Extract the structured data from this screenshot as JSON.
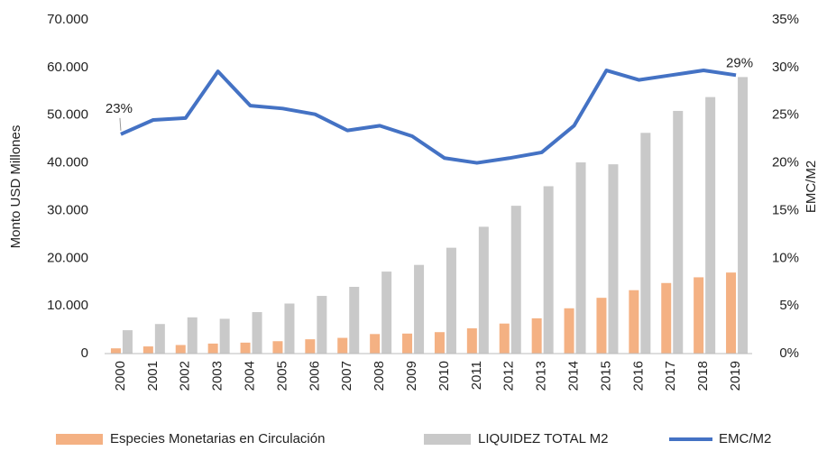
{
  "chart_data": {
    "type": "bar",
    "categories": [
      "2000",
      "2001",
      "2002",
      "2003",
      "2004",
      "2005",
      "2006",
      "2007",
      "2008",
      "2009",
      "2010",
      "2011",
      "2012",
      "2013",
      "2014",
      "2015",
      "2016",
      "2017",
      "2018",
      "2019"
    ],
    "series": [
      {
        "name": "Especies Monetarias en Circulación",
        "type": "bar",
        "color": "#f4b183",
        "values": [
          1100,
          1500,
          1800,
          2100,
          2300,
          2600,
          3000,
          3300,
          4100,
          4200,
          4500,
          5300,
          6300,
          7400,
          9500,
          11700,
          13300,
          14800,
          16000,
          17000
        ]
      },
      {
        "name": "LIQUIDEZ TOTAL M2",
        "type": "bar",
        "color": "#c9c9c9",
        "values": [
          4900,
          6200,
          7600,
          7300,
          8700,
          10500,
          12100,
          14000,
          17200,
          18600,
          22200,
          26600,
          31000,
          35100,
          40100,
          39700,
          46300,
          50900,
          53800,
          58000
        ]
      },
      {
        "name": "EMC/M2",
        "type": "line",
        "axis": "y2",
        "color": "#4472c4",
        "values": [
          23.0,
          24.5,
          24.7,
          29.6,
          26.0,
          25.7,
          25.1,
          23.4,
          23.9,
          22.8,
          20.5,
          20.0,
          20.5,
          21.1,
          23.9,
          29.7,
          28.7,
          29.2,
          29.7,
          29.2
        ],
        "value_labels": [
          "23%",
          null,
          null,
          null,
          null,
          null,
          null,
          null,
          null,
          null,
          null,
          null,
          null,
          null,
          null,
          null,
          null,
          null,
          null,
          "29%"
        ]
      }
    ],
    "ylabel": "Monto USD Millones",
    "y2label": "EMC/M2",
    "ylim": [
      0,
      70000
    ],
    "yticks": [
      0,
      {
        "value": 10000,
        "label": "10.000"
      },
      {
        "value": 20000,
        "label": "20.000"
      },
      {
        "value": 30000,
        "label": "30.000"
      },
      {
        "value": 40000,
        "label": "40.000"
      },
      {
        "value": 50000,
        "label": "50.000"
      },
      {
        "value": 60000,
        "label": "60.000"
      },
      {
        "value": 70000,
        "label": "70.000"
      }
    ],
    "y2lim": [
      0,
      35
    ],
    "y2ticks": [
      {
        "value": 0,
        "label": "0%"
      },
      {
        "value": 5,
        "label": "5%"
      },
      {
        "value": 10,
        "label": "10%"
      },
      {
        "value": 15,
        "label": "15%"
      },
      {
        "value": 20,
        "label": "20%"
      },
      {
        "value": 25,
        "label": "25%"
      },
      {
        "value": 30,
        "label": "30%"
      },
      {
        "value": 35,
        "label": "35%"
      }
    ],
    "grid": false,
    "legend": "bottom"
  }
}
